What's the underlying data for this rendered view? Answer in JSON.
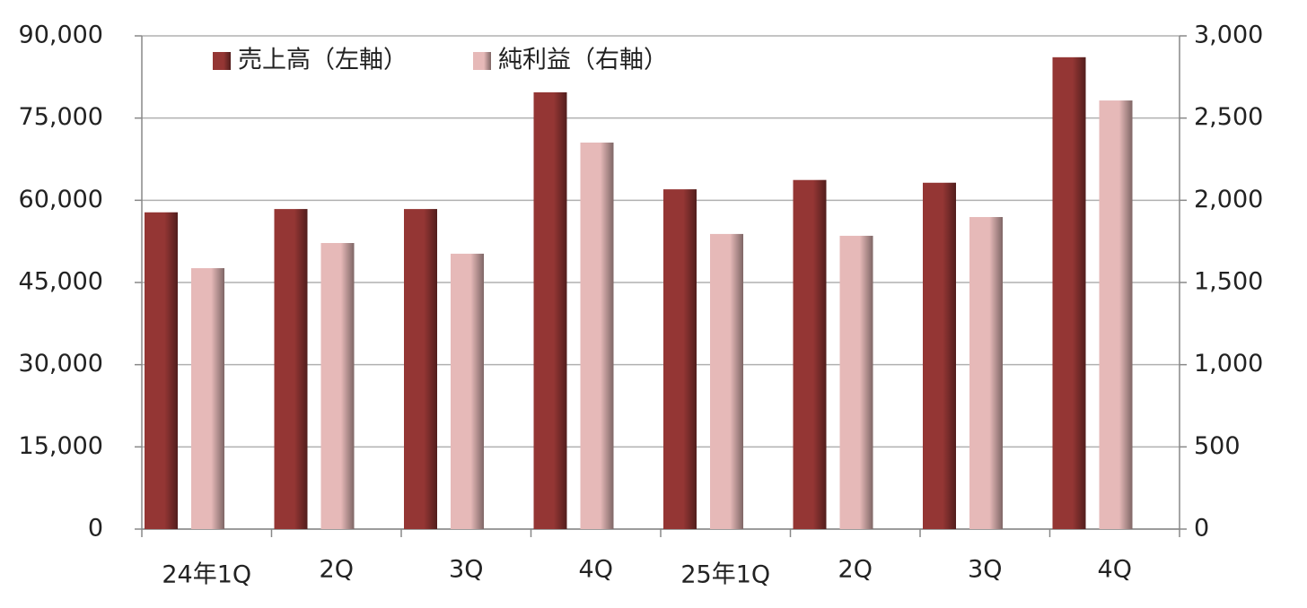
{
  "chart_data": {
    "type": "bar",
    "categories": [
      "24年1Q",
      "2Q",
      "3Q",
      "4Q",
      "25年1Q",
      "2Q",
      "3Q",
      "4Q"
    ],
    "series": [
      {
        "name": "売上高（左軸）",
        "color": "#943634",
        "values": [
          57800,
          58400,
          58400,
          79700,
          62000,
          63700,
          63200,
          86100
        ]
      },
      {
        "name": "純利益（右軸）",
        "color": "#e6b9b8",
        "axis": "y2",
        "values": [
          1587,
          1740,
          1675,
          2351,
          1795,
          1784,
          1898,
          2607
        ]
      }
    ],
    "ylim": [
      0,
      90000
    ],
    "yticks": [
      0,
      {
        "value": 15000,
        "label": "15,000"
      },
      {
        "value": 30000,
        "label": "30,000"
      },
      {
        "value": 45000,
        "label": "45,000"
      },
      {
        "value": 60000,
        "label": "60,000"
      },
      {
        "value": 75000,
        "label": "75,000"
      },
      {
        "value": 90000,
        "label": "90,000"
      }
    ],
    "y2lim": [
      0,
      3000
    ],
    "y2ticks": [
      0,
      500,
      {
        "value": 1000,
        "label": "1,000"
      },
      {
        "value": 1500,
        "label": "1,500"
      },
      {
        "value": 2000,
        "label": "2,000"
      },
      {
        "value": 2500,
        "label": "2,500"
      },
      {
        "value": 3000,
        "label": "3,000"
      }
    ],
    "grid": true
  }
}
